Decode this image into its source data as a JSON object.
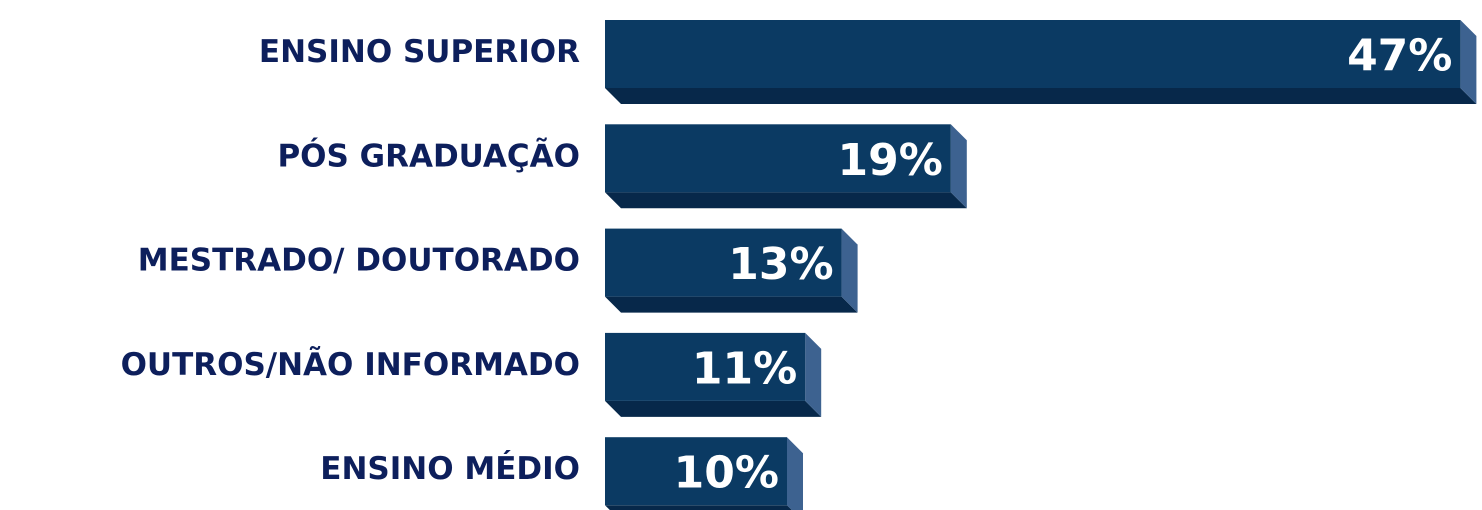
{
  "chart_data": {
    "type": "bar",
    "orientation": "horizontal",
    "categories": [
      "ENSINO SUPERIOR",
      "PÓS GRADUAÇÃO",
      "MESTRADO/ DOUTORADO",
      "OUTROS/NÃO INFORMADO",
      "ENSINO MÉDIO"
    ],
    "values": [
      47,
      19,
      13,
      11,
      10
    ],
    "value_labels": [
      "47%",
      "19%",
      "13%",
      "11%",
      "10%"
    ],
    "color": "#0b3a63"
  }
}
